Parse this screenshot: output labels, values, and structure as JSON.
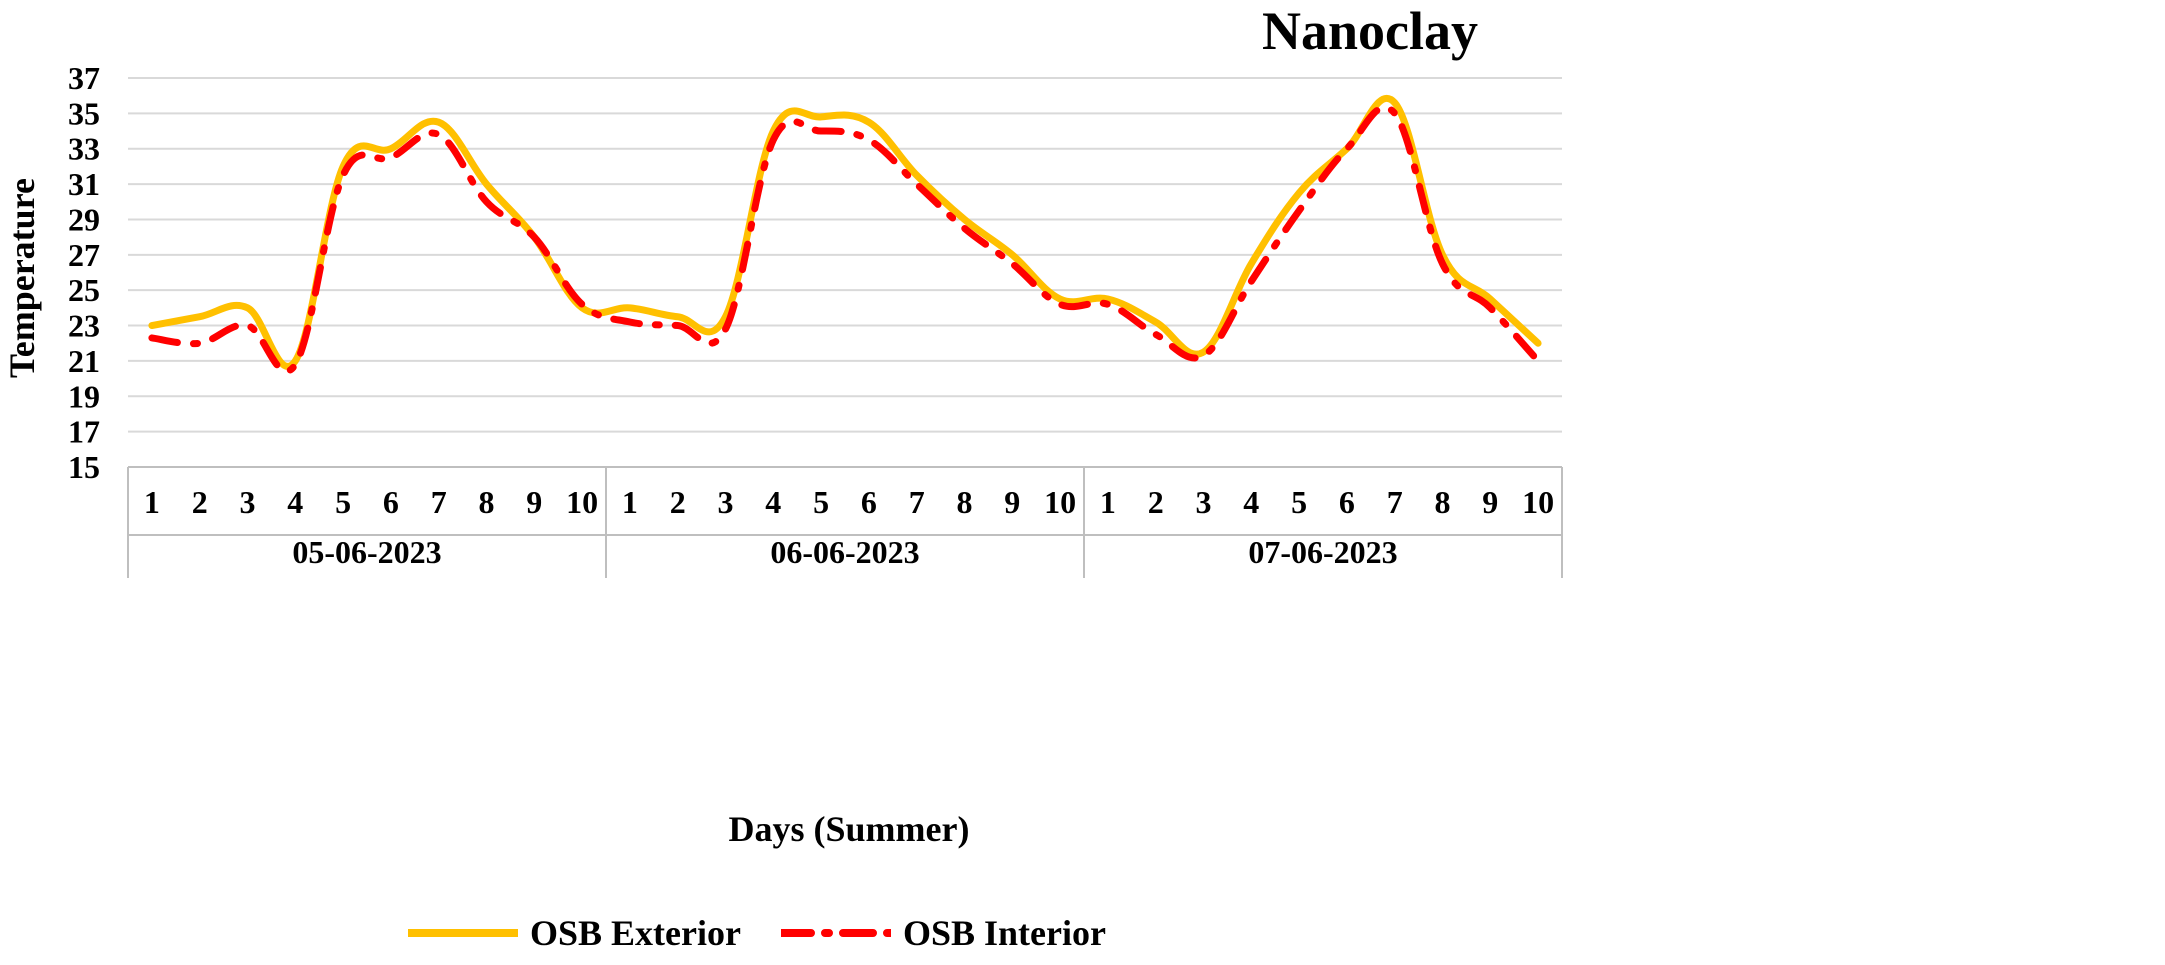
{
  "chart_data": {
    "type": "line",
    "title": "Nanoclay",
    "xlabel": "Days (Summer)",
    "ylabel": "Temperature",
    "ylim": [
      15,
      37
    ],
    "y_ticks": [
      "15",
      "17",
      "19",
      "21",
      "23",
      "25",
      "27",
      "29",
      "31",
      "33",
      "35",
      "37"
    ],
    "grid": "horizontal",
    "legend_position": "bottom",
    "groups": [
      {
        "label": "05-06-2023",
        "categories": [
          "1",
          "2",
          "3",
          "4",
          "5",
          "6",
          "7",
          "8",
          "9",
          "10"
        ]
      },
      {
        "label": "06-06-2023",
        "categories": [
          "1",
          "2",
          "3",
          "4",
          "5",
          "6",
          "7",
          "8",
          "9",
          "10"
        ]
      },
      {
        "label": "07-06-2023",
        "categories": [
          "1",
          "2",
          "3",
          "4",
          "5",
          "6",
          "7",
          "8",
          "9",
          "10"
        ]
      }
    ],
    "series": [
      {
        "name": "OSB Exterior",
        "color": "#FFC000",
        "style": "solid",
        "values": [
          23,
          23.5,
          24,
          21,
          32,
          33,
          34.5,
          31,
          28,
          24,
          24,
          23.5,
          23.5,
          34,
          34.8,
          34.5,
          31.5,
          29,
          27,
          24.5,
          24.5,
          23.2,
          21.5,
          26.5,
          30.5,
          33,
          35.6,
          27,
          24.5,
          22
        ]
      },
      {
        "name": "OSB Interior",
        "color": "#FF0000",
        "style": "dash-dot",
        "values": [
          22.3,
          22,
          23,
          20.8,
          31.5,
          32.5,
          33.8,
          30,
          28,
          24.2,
          23.2,
          23,
          22.8,
          33.5,
          34,
          33.5,
          31,
          28.5,
          26.5,
          24.2,
          24.2,
          22.5,
          21.3,
          25.5,
          29.5,
          33,
          35,
          26.5,
          24,
          21
        ]
      }
    ]
  }
}
